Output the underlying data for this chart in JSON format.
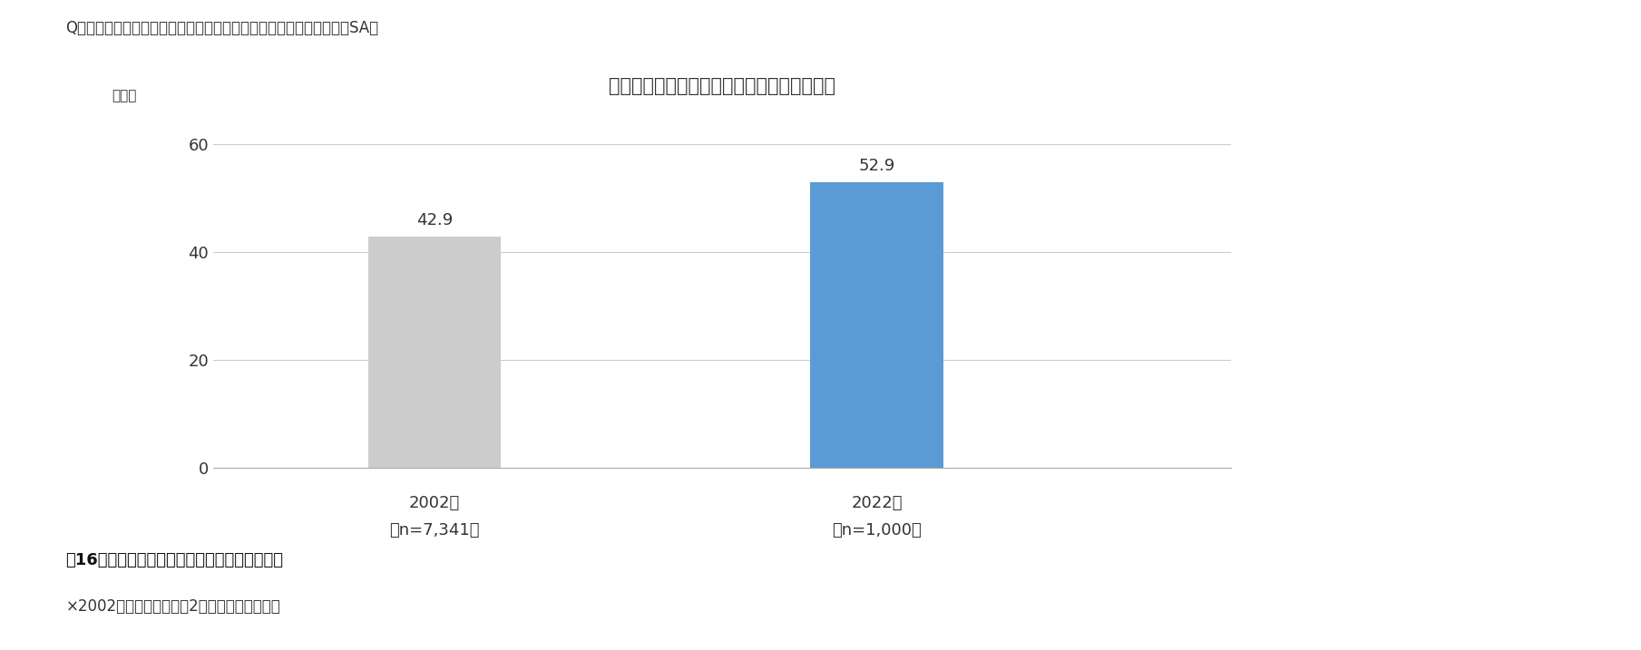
{
  "title": "「室内の空気の方が心配」と答えた人の割合",
  "question": "Q：あなたは室内の空気と屋外の空気のどちらがより心配ですか。（SA）",
  "fig_caption": "囱16　室内の空気と屋外の空気どちらが心配か",
  "footnote": "×2002年のデータは「第2回空気感調査」より",
  "ylabel": "（％）",
  "categories_line1": [
    "2002年",
    "2022年"
  ],
  "categories_line2": [
    "（n=7,341）",
    "（n=1,000）"
  ],
  "values": [
    42.9,
    52.9
  ],
  "bar_colors": [
    "#cccccc",
    "#5b9bd5"
  ],
  "ylim": [
    0,
    65
  ],
  "yticks": [
    0,
    20,
    40,
    60
  ],
  "background_color": "#ffffff",
  "title_fontsize": 15,
  "label_fontsize": 13,
  "tick_fontsize": 13,
  "caption_fontsize": 13,
  "footnote_fontsize": 12,
  "question_fontsize": 12,
  "bar_width": 0.3
}
